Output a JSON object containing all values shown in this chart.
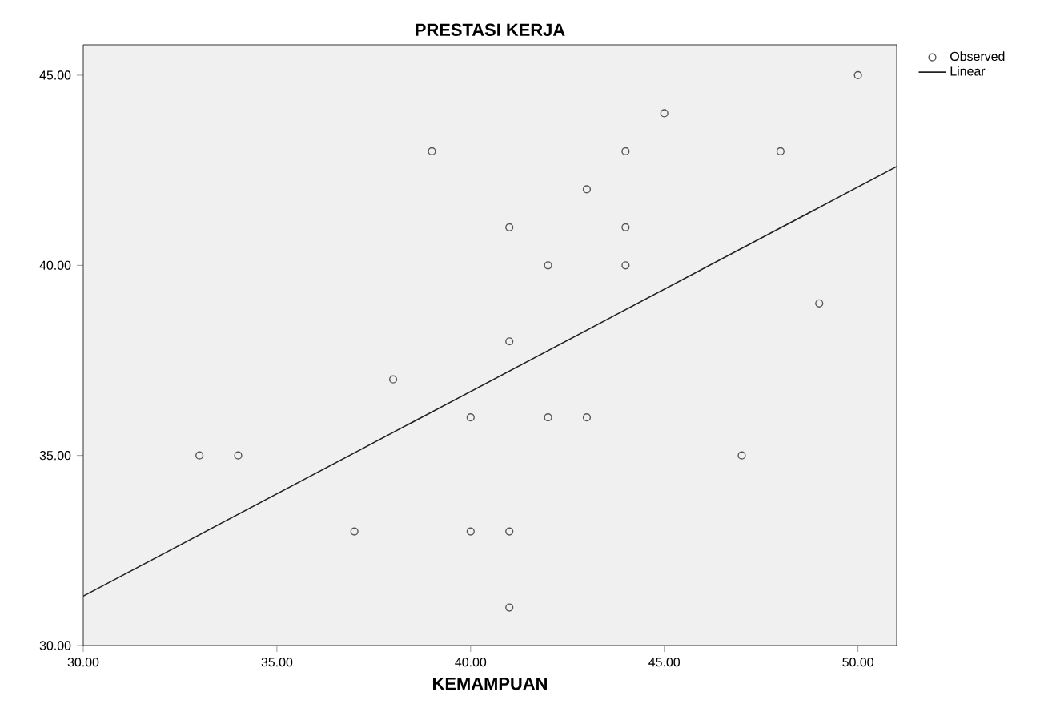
{
  "chart_data": {
    "type": "scatter",
    "title": "PRESTASI KERJA",
    "xlabel": "KEMAMPUAN",
    "xlim": [
      30,
      51
    ],
    "ylim": [
      30,
      45.8
    ],
    "xticks": [
      {
        "value": 30,
        "label": "30.00"
      },
      {
        "value": 35,
        "label": "35.00"
      },
      {
        "value": 40,
        "label": "40.00"
      },
      {
        "value": 45,
        "label": "45.00"
      },
      {
        "value": 50,
        "label": "50.00"
      }
    ],
    "yticks": [
      {
        "value": 30,
        "label": "30.00"
      },
      {
        "value": 35,
        "label": "35.00"
      },
      {
        "value": 40,
        "label": "40.00"
      },
      {
        "value": 45,
        "label": "45.00"
      }
    ],
    "grid": false,
    "legend": "top right",
    "series": [
      {
        "name": "Observed",
        "marker": "circle",
        "color": "#555555",
        "x": [
          33,
          34,
          37,
          38,
          39,
          40,
          40,
          41,
          41,
          41,
          41,
          42,
          42,
          43,
          43,
          44,
          44,
          44,
          45,
          47,
          48,
          49,
          50
        ],
        "values": [
          35,
          35,
          33,
          37,
          43,
          36,
          33,
          41,
          38,
          33,
          31,
          40,
          36,
          42,
          36,
          43,
          41,
          40,
          44,
          35,
          43,
          39,
          45
        ]
      },
      {
        "name": "Linear",
        "type": "line",
        "marker": "none",
        "color": "#222222",
        "line_style": "solid",
        "x": [
          30,
          51
        ],
        "values": [
          31.3,
          42.6
        ]
      }
    ]
  }
}
